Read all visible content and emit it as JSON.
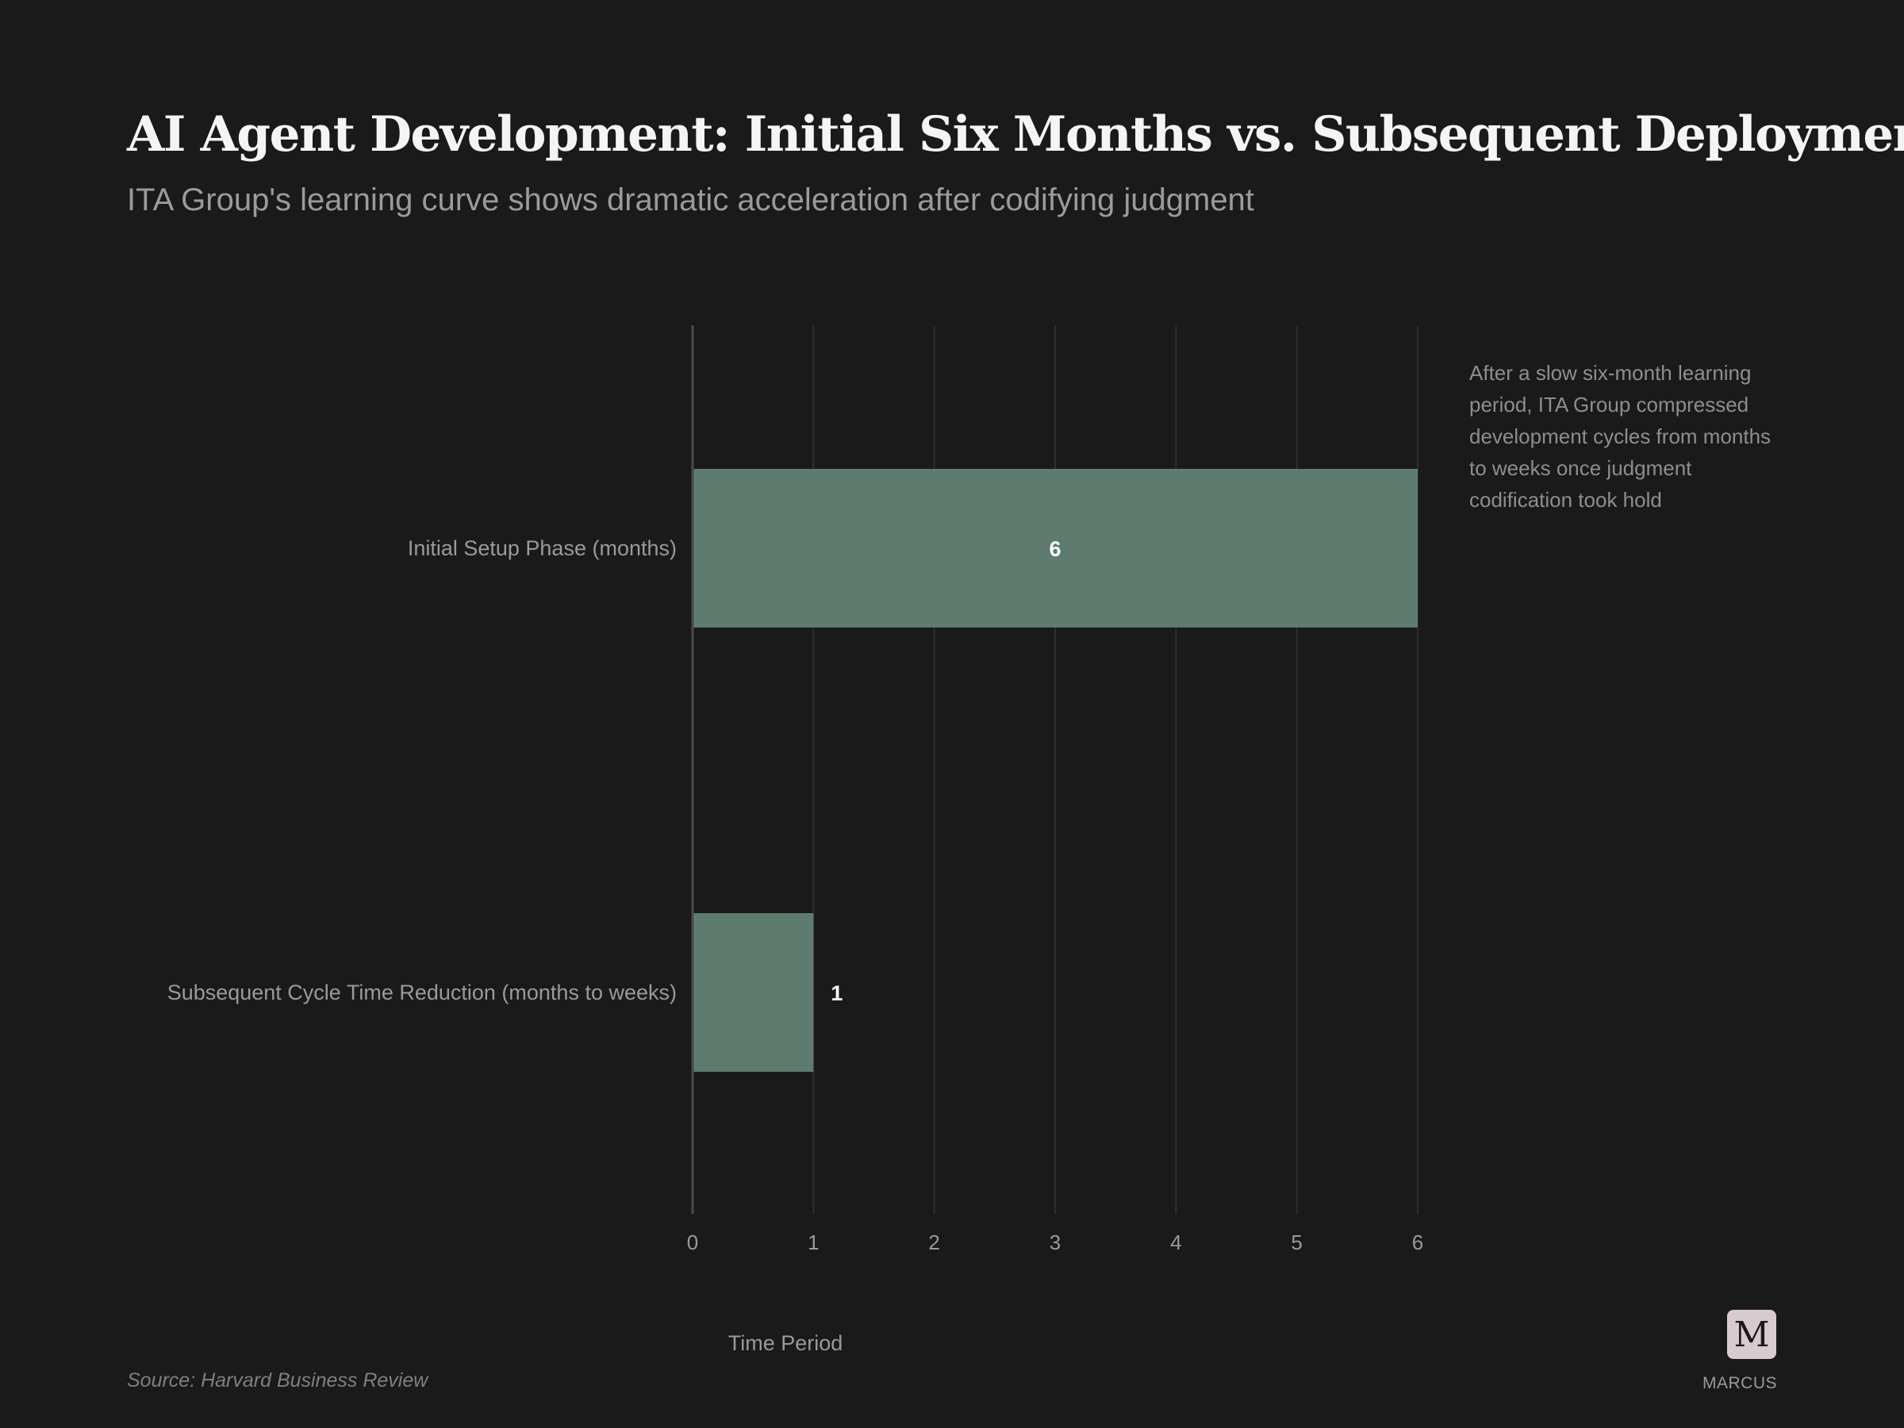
{
  "header": {
    "title": "AI Agent Development: Initial Six Months vs. Subsequent Deployment",
    "subtitle": "ITA Group's learning curve shows dramatic acceleration after codifying judgment"
  },
  "annotation": "After a slow six-month learning period, ITA Group compressed development cycles from months to weeks once judgment codification took hold",
  "footer": {
    "source": "Source: Harvard Business Review",
    "brand_letter": "M",
    "brand_name": "MARCUS"
  },
  "colors": {
    "background": "#1a1a1a",
    "bar": "#5e7b6f",
    "grid": "#2e2e2e",
    "axis": "#4a4a4a",
    "label": "#9a9a9a",
    "value_label": "#ffffff"
  },
  "chart_data": {
    "type": "bar",
    "orientation": "horizontal",
    "categories": [
      "Initial Setup Phase (months)",
      "Subsequent Cycle Time Reduction (months to weeks)"
    ],
    "values": [
      6,
      1
    ],
    "data_labels": [
      "6",
      "1"
    ],
    "xlabel": "Time Period",
    "ylabel": "",
    "xlim": [
      0,
      6
    ],
    "x_ticks": [
      0,
      1,
      2,
      3,
      4,
      5,
      6
    ],
    "grid": true
  }
}
